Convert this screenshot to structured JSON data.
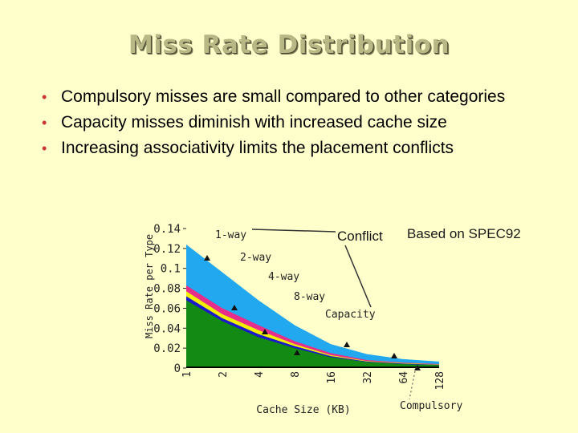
{
  "slide": {
    "title": "Miss Rate Distribution",
    "bullets": [
      "Compulsory misses are small compared to other categories",
      "Capacity misses diminish with increased cache size",
      "Increasing associativity limits the placement conflicts"
    ],
    "note": "Based on SPEC92"
  },
  "chart_data": {
    "type": "area",
    "title": "",
    "xlabel": "Cache Size (KB)",
    "ylabel": "Miss Rate per Type",
    "x": [
      1,
      2,
      4,
      8,
      16,
      32,
      64,
      128
    ],
    "x_scale": "log2",
    "ylim": [
      0,
      0.14
    ],
    "y_ticks": [
      "0",
      "0.02",
      "0.04",
      "0.06",
      "0.08",
      "0.1",
      "0.12",
      "0.14"
    ],
    "stacking": "cumulative",
    "series": [
      {
        "name": "Compulsory",
        "color": "#000000",
        "values": [
          0.0009,
          0.0009,
          0.0009,
          0.0009,
          0.0009,
          0.0009,
          0.0009,
          0.0009
        ]
      },
      {
        "name": "Capacity",
        "color": "#138A13",
        "values": [
          0.068,
          0.047,
          0.031,
          0.02,
          0.011,
          0.006,
          0.004,
          0.003
        ]
      },
      {
        "name": "8-way",
        "color": "#1A1ACC",
        "values": [
          0.072,
          0.05,
          0.034,
          0.022,
          0.012,
          0.0065,
          0.0045,
          0.0033
        ]
      },
      {
        "name": "4-way",
        "color": "#F2F200",
        "values": [
          0.077,
          0.054,
          0.038,
          0.024,
          0.013,
          0.007,
          0.005,
          0.0036
        ]
      },
      {
        "name": "2-way",
        "color": "#E62E8A",
        "values": [
          0.083,
          0.06,
          0.043,
          0.027,
          0.015,
          0.008,
          0.0055,
          0.004
        ]
      },
      {
        "name": "1-way",
        "color": "#22A8EE",
        "values": [
          0.124,
          0.096,
          0.068,
          0.043,
          0.024,
          0.014,
          0.009,
          0.0065
        ]
      }
    ],
    "labels": [
      "1-way",
      "2-way",
      "4-way",
      "8-way",
      "Capacity",
      "Conflict",
      "Compulsory"
    ]
  }
}
